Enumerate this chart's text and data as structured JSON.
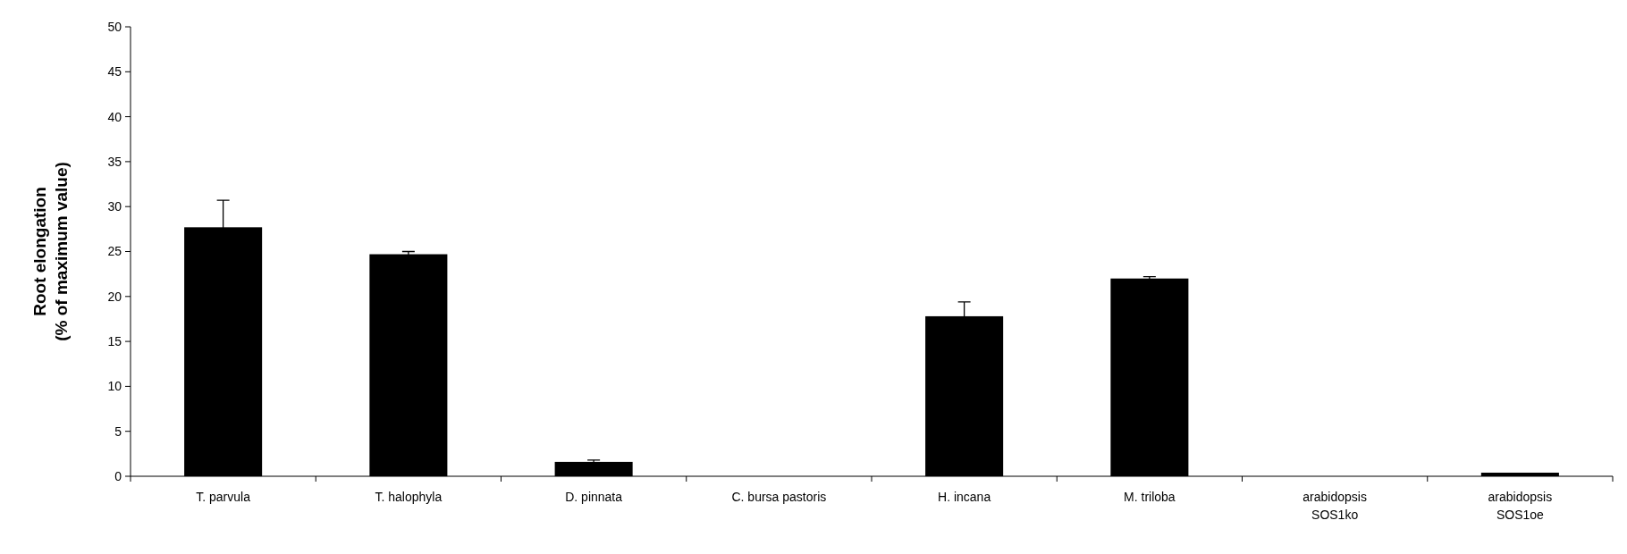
{
  "chart_data": {
    "type": "bar",
    "ylabel": "Root elongation\n(% of maximum value)",
    "categories": [
      "T. parvula",
      "T. halophyla",
      "D. pinnata",
      "C. bursa pastoris",
      "H. incana",
      "M. triloba",
      "arabidopsis\nSOS1ko",
      "arabidopsis\nSOS1oe"
    ],
    "values": [
      27.7,
      24.7,
      1.6,
      0,
      17.8,
      22.0,
      0,
      0.4
    ],
    "errors": [
      3.0,
      0.3,
      0.2,
      null,
      1.6,
      0.2,
      null,
      null
    ],
    "color": "#000000",
    "ylim": [
      0,
      50
    ],
    "yticks": [
      0,
      5,
      10,
      15,
      20,
      25,
      30,
      35,
      40,
      45,
      50
    ],
    "grid": false
  }
}
